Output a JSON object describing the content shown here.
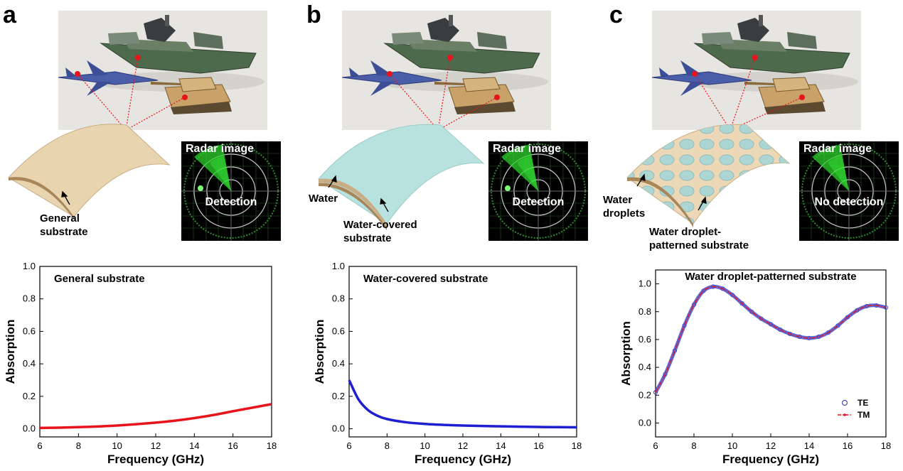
{
  "panels": [
    {
      "letter": "a",
      "radar_title": "Radar image",
      "radar_status": "Detection",
      "callouts": [
        "General\nsubstrate"
      ]
    },
    {
      "letter": "b",
      "radar_title": "Radar image",
      "radar_status": "Detection",
      "callouts": [
        "Water",
        "Water-covered\nsubstrate"
      ]
    },
    {
      "letter": "c",
      "radar_title": "Radar image",
      "radar_status": "No detection",
      "callouts": [
        "Water\ndroplets",
        "Water droplet-\npatterned substrate"
      ]
    }
  ],
  "icons": [
    "ship-icon",
    "jet-icon",
    "tank-icon",
    "radar-screen-icon",
    "curved-substrate-icon"
  ],
  "colors": {
    "red": "#e8141c",
    "blue": "#1f1fd2",
    "te_marker": "#4a4ac8",
    "tm_line": "#e8141c"
  },
  "chart_data": [
    {
      "type": "line",
      "title": "General substrate",
      "xlabel": "Frequency (GHz)",
      "ylabel": "Absorption",
      "xlim": [
        6,
        18
      ],
      "ylim": [
        -0.05,
        1.0
      ],
      "xticks": [
        6,
        8,
        10,
        12,
        14,
        16,
        18
      ],
      "yticks": [
        0.0,
        0.2,
        0.4,
        0.6,
        0.8,
        1.0
      ],
      "grid": false,
      "series": [
        {
          "color": "#e8141c",
          "x": [
            6,
            7,
            8,
            9,
            10,
            11,
            12,
            13,
            14,
            15,
            16,
            17,
            18
          ],
          "y": [
            0.005,
            0.007,
            0.01,
            0.014,
            0.02,
            0.028,
            0.038,
            0.05,
            0.066,
            0.085,
            0.108,
            0.13,
            0.152
          ]
        }
      ]
    },
    {
      "type": "line",
      "title": "Water-covered substrate",
      "xlabel": "Frequency (GHz)",
      "ylabel": "Absorption",
      "xlim": [
        6,
        18
      ],
      "ylim": [
        -0.05,
        1.0
      ],
      "xticks": [
        6,
        8,
        10,
        12,
        14,
        16,
        18
      ],
      "yticks": [
        0.0,
        0.2,
        0.4,
        0.6,
        0.8,
        1.0
      ],
      "grid": false,
      "series": [
        {
          "color": "#1f1fd2",
          "x": [
            6,
            6.5,
            7,
            7.5,
            8,
            9,
            10,
            11,
            12,
            13,
            14,
            15,
            16,
            17,
            18
          ],
          "y": [
            0.3,
            0.18,
            0.115,
            0.08,
            0.06,
            0.04,
            0.03,
            0.024,
            0.02,
            0.017,
            0.015,
            0.013,
            0.011,
            0.01,
            0.009
          ]
        }
      ]
    },
    {
      "type": "line",
      "title": "Water droplet-patterned substrate",
      "xlabel": "Frequency (GHz)",
      "ylabel": "Absorption",
      "xlim": [
        6,
        18
      ],
      "ylim": [
        -0.1,
        1.1
      ],
      "xticks": [
        6,
        8,
        10,
        12,
        14,
        16,
        18
      ],
      "yticks": [
        0.0,
        0.2,
        0.4,
        0.6,
        0.8,
        1.0
      ],
      "grid": false,
      "legend": "bottom-right",
      "series": [
        {
          "name": "TE",
          "style": "circle-markers",
          "color": "#4a4ac8",
          "x": [
            6,
            6.5,
            7,
            7.5,
            8,
            8.5,
            9,
            9.5,
            10,
            10.5,
            11,
            11.5,
            12,
            12.5,
            13,
            13.5,
            14,
            14.5,
            15,
            15.5,
            16,
            16.5,
            17,
            17.5,
            18
          ],
          "y": [
            0.22,
            0.35,
            0.52,
            0.7,
            0.85,
            0.95,
            0.98,
            0.965,
            0.92,
            0.86,
            0.8,
            0.75,
            0.71,
            0.67,
            0.64,
            0.62,
            0.61,
            0.62,
            0.65,
            0.7,
            0.76,
            0.81,
            0.84,
            0.845,
            0.83
          ]
        },
        {
          "name": "TM",
          "style": "dash-dot",
          "color": "#e8141c",
          "x": [
            6,
            6.5,
            7,
            7.5,
            8,
            8.5,
            9,
            9.5,
            10,
            10.5,
            11,
            11.5,
            12,
            12.5,
            13,
            13.5,
            14,
            14.5,
            15,
            15.5,
            16,
            16.5,
            17,
            17.5,
            18
          ],
          "y": [
            0.22,
            0.35,
            0.52,
            0.7,
            0.85,
            0.95,
            0.98,
            0.965,
            0.92,
            0.86,
            0.8,
            0.75,
            0.71,
            0.67,
            0.64,
            0.62,
            0.61,
            0.62,
            0.65,
            0.7,
            0.76,
            0.81,
            0.84,
            0.845,
            0.83
          ]
        }
      ]
    }
  ]
}
